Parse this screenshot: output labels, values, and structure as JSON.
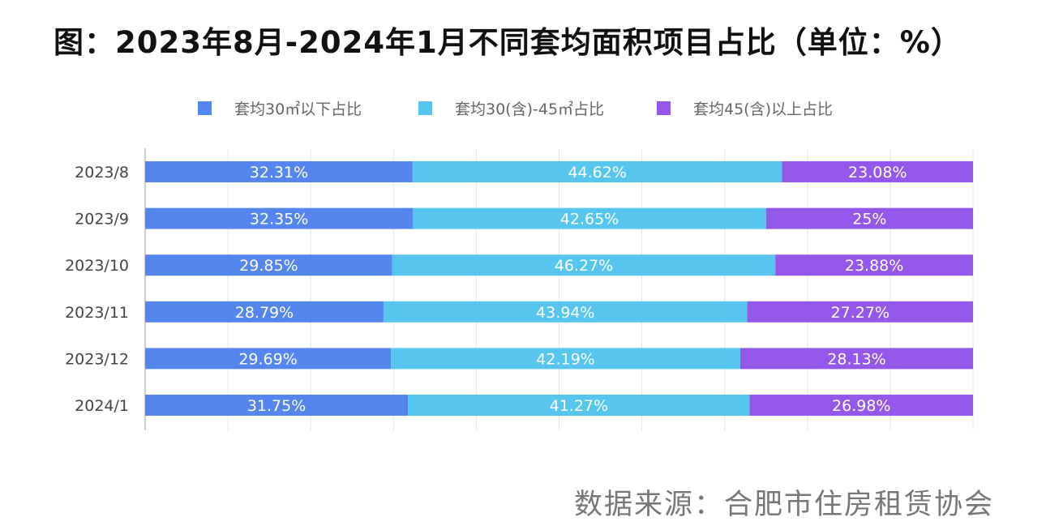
{
  "title": "图：2023年8月-2024年1月不同套均面积项目占比（单位：%）",
  "source": "数据来源：合肥市住房租赁协会",
  "colors": {
    "series1": "#5585ee",
    "series2": "#56c6ef",
    "series3": "#9358e9",
    "grid": "#e6e6e6",
    "axis": "#bfbfbf"
  },
  "chart_data": {
    "type": "bar",
    "orientation": "horizontal",
    "stacked": true,
    "categories": [
      "2023/8",
      "2023/9",
      "2023/10",
      "2023/11",
      "2023/12",
      "2024/1"
    ],
    "series": [
      {
        "name": "套均30㎡以下占比",
        "values": [
          32.31,
          32.35,
          29.85,
          28.79,
          29.69,
          31.75
        ],
        "labels": [
          "32.31%",
          "32.35%",
          "29.85%",
          "28.79%",
          "29.69%",
          "31.75%"
        ]
      },
      {
        "name": "套均30(含)-45㎡占比",
        "values": [
          44.62,
          42.65,
          46.27,
          43.94,
          42.19,
          41.27
        ],
        "labels": [
          "44.62%",
          "42.65%",
          "46.27%",
          "43.94%",
          "42.19%",
          "41.27%"
        ]
      },
      {
        "name": "套均45(含)以上占比",
        "values": [
          23.08,
          25,
          23.88,
          27.27,
          28.13,
          26.98
        ],
        "labels": [
          "23.08%",
          "25%",
          "23.88%",
          "27.27%",
          "28.13%",
          "26.98%"
        ]
      }
    ],
    "xlim": [
      0,
      100
    ],
    "grid": true,
    "legend_position": "top"
  }
}
